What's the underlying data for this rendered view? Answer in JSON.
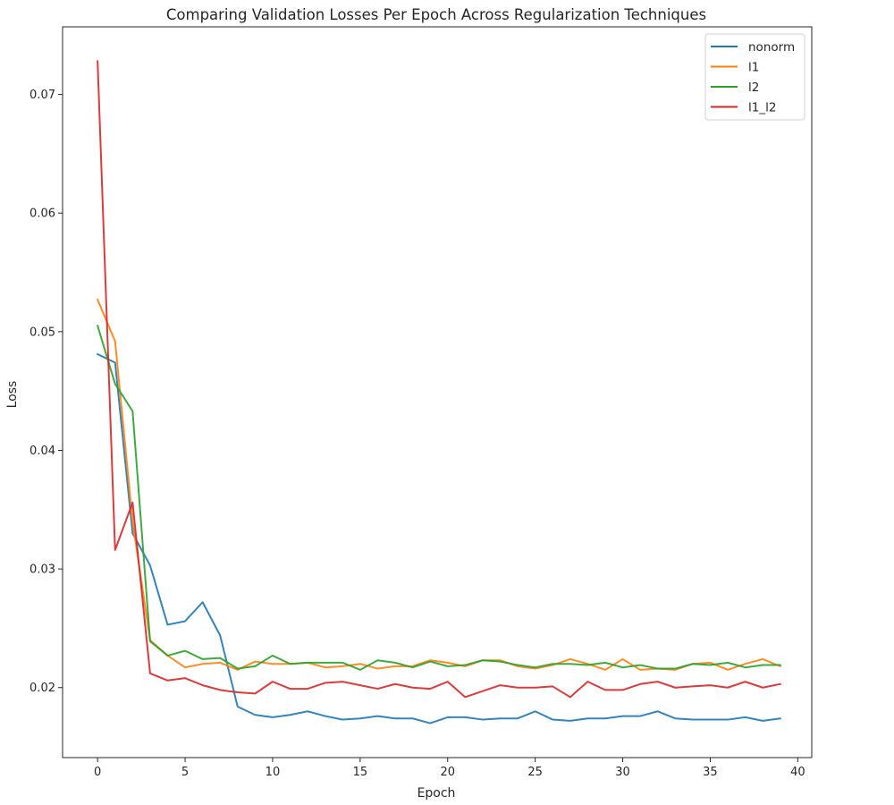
{
  "chart_data": {
    "type": "line",
    "title": "Comparing Validation Losses Per Epoch Across Regularization Techniques",
    "xlabel": "Epoch",
    "ylabel": "Loss",
    "xlim": [
      -2,
      40.8
    ],
    "ylim": [
      0.0141,
      0.0757
    ],
    "xticks": [
      0,
      5,
      10,
      15,
      20,
      25,
      30,
      35,
      40
    ],
    "xtick_labels": [
      "0",
      "5",
      "10",
      "15",
      "20",
      "25",
      "30",
      "35",
      "40"
    ],
    "yticks": [
      0.02,
      0.03,
      0.04,
      0.05,
      0.06,
      0.07
    ],
    "ytick_labels": [
      "0.02",
      "0.03",
      "0.04",
      "0.05",
      "0.06",
      "0.07"
    ],
    "grid": false,
    "legend_position": "top-right",
    "x": [
      0,
      1,
      2,
      3,
      4,
      5,
      6,
      7,
      8,
      9,
      10,
      11,
      12,
      13,
      14,
      15,
      16,
      17,
      18,
      19,
      20,
      21,
      22,
      23,
      24,
      25,
      26,
      27,
      28,
      29,
      30,
      31,
      32,
      33,
      34,
      35,
      36,
      37,
      38,
      39
    ],
    "series": [
      {
        "name": "nonorm",
        "color": "#1f77b4",
        "values": [
          0.0481,
          0.0474,
          0.033,
          0.0303,
          0.0253,
          0.0256,
          0.0272,
          0.0244,
          0.0184,
          0.0177,
          0.0175,
          0.0177,
          0.018,
          0.0176,
          0.0173,
          0.0174,
          0.0176,
          0.0174,
          0.0174,
          0.017,
          0.0175,
          0.0175,
          0.0173,
          0.0174,
          0.0174,
          0.018,
          0.0173,
          0.0172,
          0.0174,
          0.0174,
          0.0176,
          0.0176,
          0.018,
          0.0174,
          0.0173,
          0.0173,
          0.0173,
          0.0175,
          0.0172,
          0.0174
        ]
      },
      {
        "name": "l1",
        "color": "#ff7f0e",
        "values": [
          0.0527,
          0.0492,
          0.034,
          0.024,
          0.0227,
          0.0217,
          0.022,
          0.0221,
          0.0215,
          0.0222,
          0.022,
          0.022,
          0.0221,
          0.0217,
          0.0218,
          0.022,
          0.0216,
          0.0218,
          0.0218,
          0.0223,
          0.0221,
          0.0218,
          0.0223,
          0.0223,
          0.0218,
          0.0216,
          0.0219,
          0.0224,
          0.022,
          0.0215,
          0.0224,
          0.0215,
          0.0216,
          0.0215,
          0.022,
          0.0221,
          0.0215,
          0.022,
          0.0224,
          0.0218
        ]
      },
      {
        "name": "l2",
        "color": "#2ca02c",
        "values": [
          0.0505,
          0.0456,
          0.0433,
          0.0239,
          0.0227,
          0.0231,
          0.0224,
          0.0225,
          0.0216,
          0.0218,
          0.0227,
          0.022,
          0.0221,
          0.0221,
          0.0221,
          0.0215,
          0.0223,
          0.0221,
          0.0217,
          0.0222,
          0.0218,
          0.0219,
          0.0223,
          0.0222,
          0.0219,
          0.0217,
          0.022,
          0.022,
          0.0219,
          0.0221,
          0.0217,
          0.0219,
          0.0216,
          0.0216,
          0.022,
          0.0219,
          0.0221,
          0.0217,
          0.0219,
          0.0219
        ]
      },
      {
        "name": "l1_l2",
        "color": "#d62728",
        "values": [
          0.0728,
          0.0316,
          0.0356,
          0.0212,
          0.0206,
          0.0208,
          0.0202,
          0.0198,
          0.0196,
          0.0195,
          0.0205,
          0.0199,
          0.0199,
          0.0204,
          0.0205,
          0.0202,
          0.0199,
          0.0203,
          0.02,
          0.0199,
          0.0205,
          0.0192,
          0.0197,
          0.0202,
          0.02,
          0.02,
          0.0201,
          0.0192,
          0.0205,
          0.0198,
          0.0198,
          0.0203,
          0.0205,
          0.02,
          0.0201,
          0.0202,
          0.02,
          0.0205,
          0.02,
          0.0203
        ]
      }
    ]
  }
}
